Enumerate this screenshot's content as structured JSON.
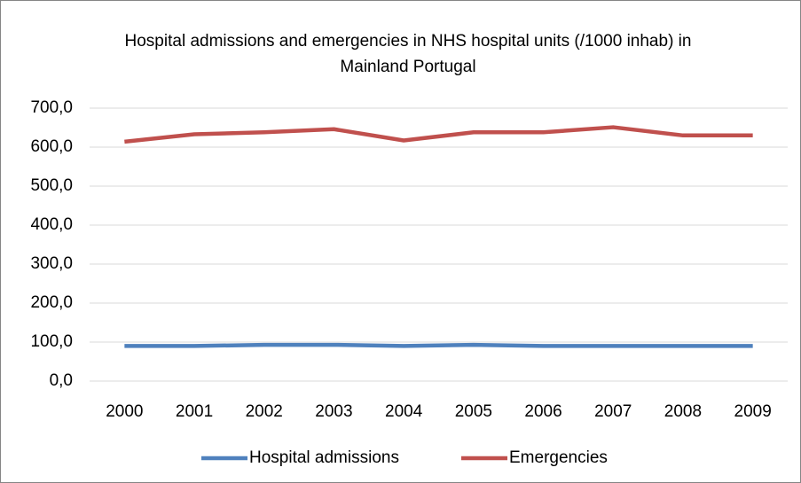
{
  "chart_data": {
    "type": "line",
    "title": "Hospital admissions and emergencies in NHS hospital units (/1000 inhab) in Mainland Portugal",
    "categories": [
      "2000",
      "2001",
      "2002",
      "2003",
      "2004",
      "2005",
      "2006",
      "2007",
      "2008",
      "2009"
    ],
    "series": [
      {
        "name": "Hospital admissions",
        "color": "#4f81bd",
        "values": [
          90,
          90,
          93,
          93,
          90,
          93,
          90,
          90,
          90,
          90
        ]
      },
      {
        "name": "Emergencies",
        "color": "#c0504d",
        "values": [
          614,
          633,
          638,
          646,
          617,
          638,
          638,
          651,
          630,
          630
        ]
      }
    ],
    "ylim": [
      0,
      700
    ],
    "yticks": [
      {
        "value": 0,
        "label": "0,0"
      },
      {
        "value": 100,
        "label": "100,0"
      },
      {
        "value": 200,
        "label": "200,0"
      },
      {
        "value": 300,
        "label": "300,0"
      },
      {
        "value": 400,
        "label": "400,0"
      },
      {
        "value": 500,
        "label": "500,0"
      },
      {
        "value": 600,
        "label": "600,0"
      },
      {
        "value": 700,
        "label": "700,0"
      }
    ],
    "grid": true,
    "legend": "bottom"
  }
}
